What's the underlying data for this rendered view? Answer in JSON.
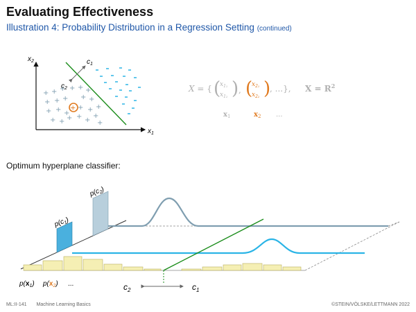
{
  "slide": {
    "title": "Evaluating Effectiveness",
    "subtitle_main": "Illustration 4:  Probability Distribution in a Regression Setting",
    "subtitle_cont": "(continued)",
    "section_label": "Optimum hyperplane classifier:",
    "footer_id": "ML:II-141",
    "footer_course": "Machine Learning Basics",
    "footer_copyright": "©STEIN/VÖLSKE/LETTMANN 2022"
  },
  "scatter": {
    "x_axis_label": "x",
    "x_axis_sub": "1",
    "y_axis_label": "x",
    "y_axis_sub": "2",
    "c1_label": "c",
    "c1_sub": "1",
    "c2_label": "c",
    "c2_sub": "2"
  },
  "formula": {
    "x_set": "X = {",
    "x_set_end": ", ...},",
    "X_bold": "X = R",
    "X_sup": "2",
    "x11": "x",
    "x11_sub": "1₁",
    "x12": "x",
    "x12_sub": "1₂",
    "x21": "x",
    "x21_sub": "2₁",
    "x22": "x",
    "x22_sub": "2₂",
    "row_x1": "x",
    "row_x1_sub": "1",
    "row_x2": "x",
    "row_x2_sub": "2",
    "row_ellipsis": "..."
  },
  "distribution": {
    "pc1_label": "p(c",
    "pc1_sub": "1",
    "pc2_label": "p(c",
    "pc2_sub": "2",
    "px1_label": "p(",
    "px1_var": "x",
    "px1_sub": "1",
    "px2_label": "p(",
    "px2_var": "x",
    "px2_sub": "2",
    "ellipsis": "...",
    "bottom_c2": "c",
    "bottom_c2_sub": "2",
    "bottom_c1": "c",
    "bottom_c1_sub": "1"
  },
  "colors": {
    "blue_bar": "#4ab0de",
    "gray_bar": "#b8cfdc",
    "gray_curve": "#7f9eb0",
    "blue_curve": "#2ab4e6",
    "hyperplane_green": "#1a8c1a",
    "histogram_fill": "#f5efb4",
    "highlight_orange": "#e07a1f",
    "title_blue": "#1f57a8"
  }
}
